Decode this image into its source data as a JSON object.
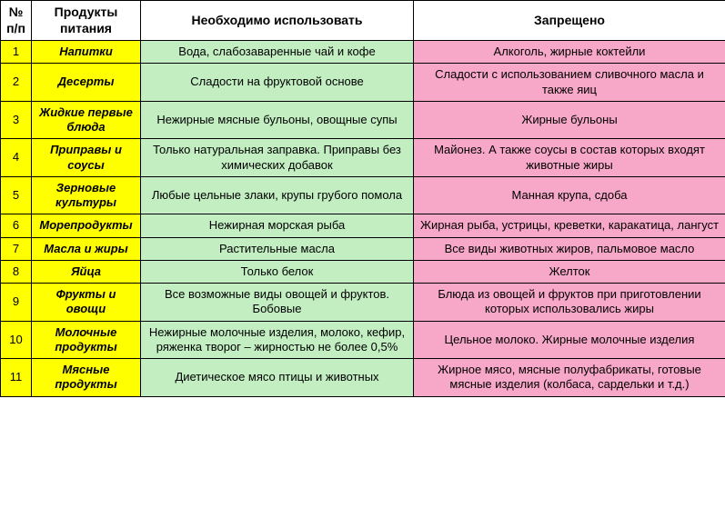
{
  "colors": {
    "num_bg": "#ffff00",
    "cat_bg": "#ffff00",
    "use_bg": "#c2eec2",
    "ban_bg": "#f7a7c7",
    "border": "#000000",
    "header_bg": "#ffffff"
  },
  "table": {
    "columns": {
      "num": "№ п/п",
      "category": "Продукты питания",
      "use": "Необходимо использовать",
      "ban": "Запрещено"
    },
    "rows": [
      {
        "num": "1",
        "category": "Напитки",
        "use": "Вода, слабозаваренные чай и кофе",
        "ban": "Алкоголь, жирные коктейли"
      },
      {
        "num": "2",
        "category": "Десерты",
        "use": "Сладости на фруктовой основе",
        "ban": "Сладости с использованием сливочного масла и также яиц"
      },
      {
        "num": "3",
        "category": "Жидкие первые блюда",
        "use": "Нежирные мясные бульоны, овощные супы",
        "ban": "Жирные бульоны"
      },
      {
        "num": "4",
        "category": "Приправы и соусы",
        "use": "Только натуральная заправка. Приправы без химических добавок",
        "ban": "Майонез. А также соусы в состав которых входят животные жиры"
      },
      {
        "num": "5",
        "category": "Зерновые культуры",
        "use": "Любые цельные злаки, крупы грубого помола",
        "ban": "Манная крупа, сдоба"
      },
      {
        "num": "6",
        "category": "Морепродукты",
        "use": "Нежирная морская рыба",
        "ban": "Жирная рыба, устрицы, креветки, каракатица, лангуст"
      },
      {
        "num": "7",
        "category": "Масла и жиры",
        "use": "Растительные масла",
        "ban": "Все виды животных жиров, пальмовое масло"
      },
      {
        "num": "8",
        "category": "Яйца",
        "use": "Только белок",
        "ban": "Желток"
      },
      {
        "num": "9",
        "category": "Фрукты и овощи",
        "use": "Все возможные виды овощей и фруктов. Бобовые",
        "ban": "Блюда из овощей и фруктов при приготовлении которых использовались жиры"
      },
      {
        "num": "10",
        "category": "Молочные продукты",
        "use": "Нежирные молочные изделия, молоко, кефир, ряженка творог – жирностью не более 0,5%",
        "ban": "Цельное молоко. Жирные молочные изделия"
      },
      {
        "num": "11",
        "category": "Мясные продукты",
        "use": "Диетическое мясо птицы и животных",
        "ban": "Жирное мясо, мясные полуфабрикаты, готовые мясные изделия (колбаса, сардельки и т.д.)"
      }
    ]
  }
}
